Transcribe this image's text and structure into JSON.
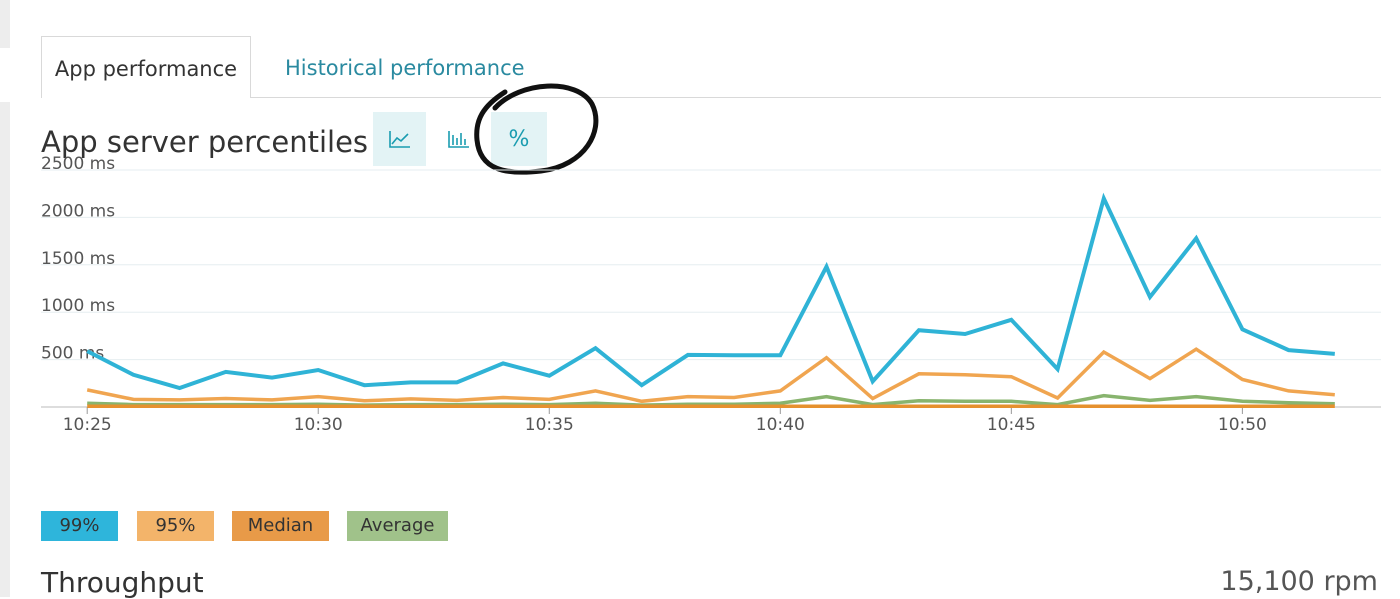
{
  "tabs": {
    "active_label": "App performance",
    "inactive_label": "Historical performance"
  },
  "section": {
    "title": "App server percentiles",
    "view_buttons": [
      {
        "icon": "line-chart-icon",
        "selected": false
      },
      {
        "icon": "bar-chart-icon",
        "selected": false
      },
      {
        "icon": "percent-icon",
        "label": "%",
        "selected": true
      }
    ],
    "hand_drawn_annotation": "black circle around percent button"
  },
  "chart_data": {
    "type": "line",
    "title": "",
    "y_ticks": [
      "2500 ms",
      "2000 ms",
      "1500 ms",
      "1000 ms",
      "500 ms"
    ],
    "ylim": [
      0,
      2500
    ],
    "x_ticks": [
      "10:25",
      "10:30",
      "10:35",
      "10:40",
      "10:45",
      "10:50"
    ],
    "xlim": [
      "10:24",
      "10:53"
    ],
    "x": [
      "10:25",
      "10:26",
      "10:27",
      "10:28",
      "10:29",
      "10:30",
      "10:31",
      "10:32",
      "10:33",
      "10:34",
      "10:35",
      "10:36",
      "10:37",
      "10:38",
      "10:39",
      "10:40",
      "10:41",
      "10:42",
      "10:43",
      "10:44",
      "10:45",
      "10:46",
      "10:47",
      "10:48",
      "10:49",
      "10:50",
      "10:51",
      "10:52"
    ],
    "series": [
      {
        "name": "99%",
        "color": "#2fb3d6",
        "values": [
          590,
          340,
          200,
          370,
          310,
          390,
          230,
          260,
          260,
          460,
          330,
          620,
          230,
          550,
          545,
          545,
          1480,
          270,
          810,
          770,
          920,
          400,
          2200,
          1160,
          1780,
          820,
          600,
          560
        ]
      },
      {
        "name": "95%",
        "color": "#f0a550",
        "values": [
          180,
          80,
          75,
          90,
          75,
          110,
          65,
          85,
          70,
          100,
          80,
          170,
          60,
          110,
          100,
          170,
          520,
          90,
          350,
          340,
          320,
          95,
          580,
          300,
          610,
          290,
          170,
          130
        ]
      },
      {
        "name": "Median",
        "color": "#e6912e",
        "values": [
          8,
          8,
          8,
          8,
          8,
          8,
          8,
          8,
          8,
          8,
          8,
          8,
          8,
          8,
          8,
          8,
          8,
          8,
          8,
          8,
          8,
          8,
          8,
          8,
          8,
          8,
          8,
          8
        ]
      },
      {
        "name": "Average",
        "color": "#88b46e",
        "values": [
          40,
          25,
          25,
          25,
          25,
          30,
          20,
          25,
          25,
          30,
          25,
          40,
          20,
          30,
          30,
          40,
          110,
          25,
          65,
          60,
          60,
          25,
          120,
          70,
          110,
          60,
          45,
          35
        ]
      }
    ],
    "grid": true,
    "legend_position": "bottom-left"
  },
  "legend": [
    {
      "label": "99%",
      "color": "#2eb5db"
    },
    {
      "label": "95%",
      "color": "#f3b46a"
    },
    {
      "label": "Median",
      "color": "#e89a48"
    },
    {
      "label": "Average",
      "color": "#a0c28a"
    }
  ],
  "throughput": {
    "title": "Throughput",
    "value": "15,100 rpm"
  }
}
